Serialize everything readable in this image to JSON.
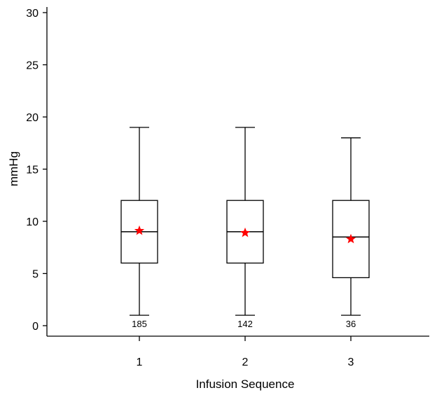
{
  "chart_data": {
    "type": "boxplot",
    "title": "",
    "xlabel": "Infusion Sequence",
    "ylabel": "mmHg",
    "ylim": [
      0,
      30
    ],
    "yticks": [
      0,
      5,
      10,
      15,
      20,
      25,
      30
    ],
    "categories": [
      "1",
      "2",
      "3"
    ],
    "boxes": [
      {
        "category": "1",
        "whisker_low": 1,
        "q1": 6,
        "median": 9,
        "q3": 12,
        "whisker_high": 19,
        "mean": 9.1,
        "n": "185"
      },
      {
        "category": "2",
        "whisker_low": 1,
        "q1": 6,
        "median": 9,
        "q3": 12,
        "whisker_high": 19,
        "mean": 8.9,
        "n": "142"
      },
      {
        "category": "3",
        "whisker_low": 1,
        "q1": 4.6,
        "median": 8.5,
        "q3": 12,
        "whisker_high": 18,
        "mean": 8.3,
        "n": "36"
      }
    ],
    "mean_marker": {
      "shape": "star",
      "color": "#ff0000"
    },
    "grid": false
  }
}
